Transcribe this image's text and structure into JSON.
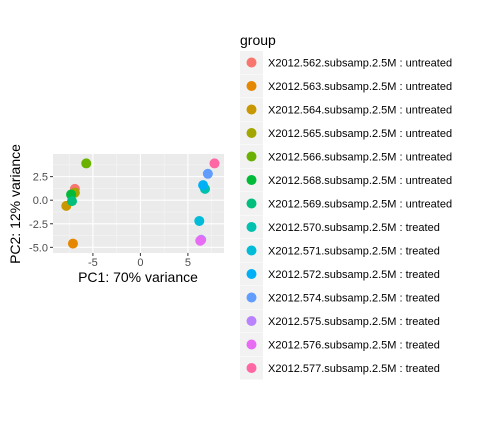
{
  "chart_data": {
    "type": "scatter",
    "xlabel": "PC1: 70% variance",
    "ylabel": "PC2: 12% variance",
    "xlim": [
      -9.2,
      8.8
    ],
    "ylim": [
      -5.6,
      4.9
    ],
    "x_ticks": [
      -5,
      0,
      5
    ],
    "y_ticks": [
      -5.0,
      -2.5,
      0.0,
      2.5
    ],
    "y_tick_labels": [
      "-5.0",
      "-2.5",
      "0.0",
      "2.5"
    ],
    "grid": true,
    "legend_title": "group",
    "legend_position": "right",
    "series": [
      {
        "name": "X2012.562.subsamp.2.5M : untreated",
        "color": "#F8766D",
        "x": -6.9,
        "y": 1.2
      },
      {
        "name": "X2012.563.subsamp.2.5M : untreated",
        "color": "#E58700",
        "x": -7.1,
        "y": -4.6
      },
      {
        "name": "X2012.564.subsamp.2.5M : untreated",
        "color": "#C99800",
        "x": -7.8,
        "y": -0.6
      },
      {
        "name": "X2012.565.subsamp.2.5M : untreated",
        "color": "#A3A500",
        "x": -6.9,
        "y": 0.8
      },
      {
        "name": "X2012.566.subsamp.2.5M : untreated",
        "color": "#6BB100",
        "x": -5.7,
        "y": 3.9
      },
      {
        "name": "X2012.568.subsamp.2.5M : untreated",
        "color": "#00BA38",
        "x": -7.3,
        "y": 0.6
      },
      {
        "name": "X2012.569.subsamp.2.5M : untreated",
        "color": "#00BF7D",
        "x": -7.2,
        "y": -0.1
      },
      {
        "name": "X2012.570.subsamp.2.5M : treated",
        "color": "#00C0AF",
        "x": 6.8,
        "y": 1.2
      },
      {
        "name": "X2012.571.subsamp.2.5M : treated",
        "color": "#00BCD8",
        "x": 6.2,
        "y": -2.2
      },
      {
        "name": "X2012.572.subsamp.2.5M : treated",
        "color": "#00B0F6",
        "x": 6.6,
        "y": 1.6
      },
      {
        "name": "X2012.574.subsamp.2.5M : treated",
        "color": "#619CFF",
        "x": 7.1,
        "y": 2.8
      },
      {
        "name": "X2012.575.subsamp.2.5M : treated",
        "color": "#B983FF",
        "x": 6.4,
        "y": -4.2
      },
      {
        "name": "X2012.576.subsamp.2.5M : treated",
        "color": "#E76BF3",
        "x": 6.3,
        "y": -4.3
      },
      {
        "name": "X2012.577.subsamp.2.5M : treated",
        "color": "#FF67A4",
        "x": 7.8,
        "y": 3.9
      }
    ]
  }
}
